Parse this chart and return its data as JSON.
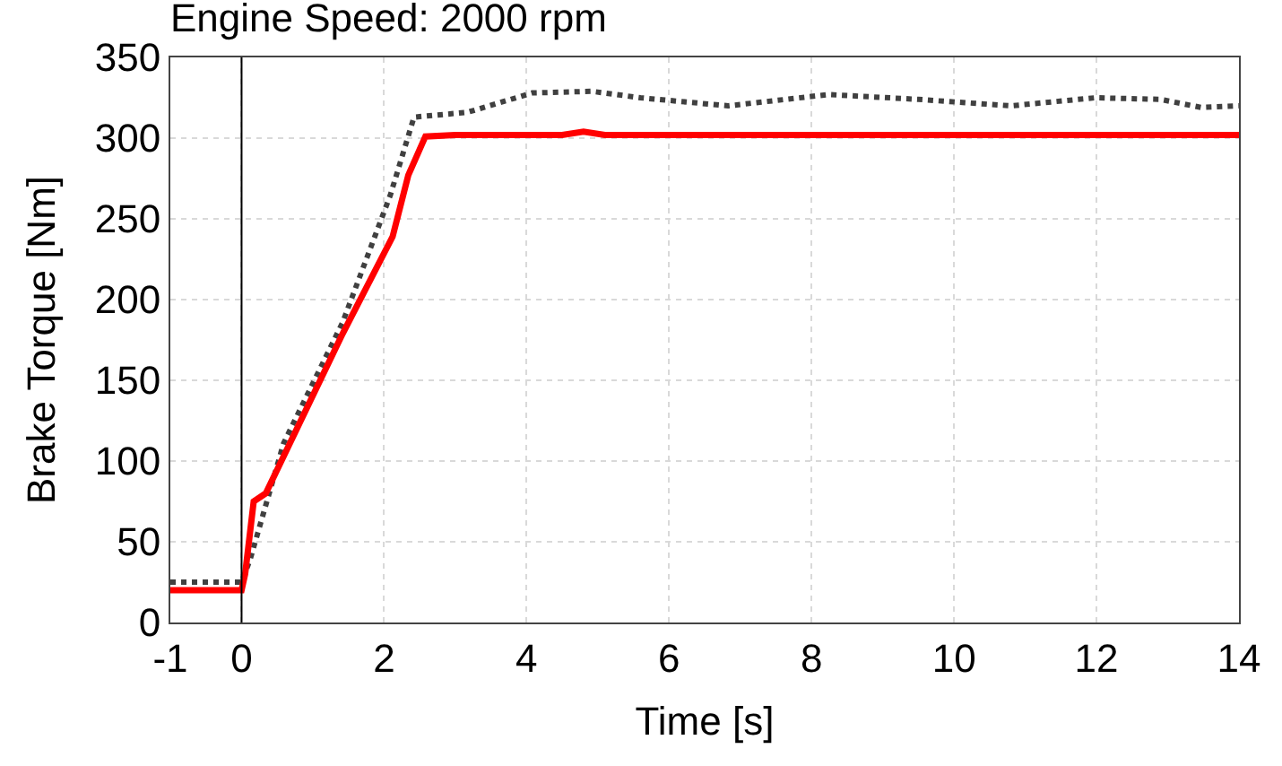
{
  "chart_data": {
    "type": "line",
    "title": "Engine Speed: 2000 rpm",
    "xlabel": "Time [s]",
    "ylabel": "Brake Torque [Nm]",
    "xlim": [
      -1,
      14
    ],
    "xticks": [
      -1,
      0,
      2,
      4,
      6,
      8,
      10,
      12,
      14
    ],
    "ylim": [
      0,
      350
    ],
    "yticks": [
      0,
      50,
      100,
      150,
      200,
      250,
      300,
      350
    ],
    "grid": true,
    "legend": false,
    "series": [
      {
        "color": "#404040",
        "line_style": "dotted",
        "x": [
          -1,
          0,
          0.12,
          0.59,
          1.42,
          2.09,
          2.42,
          3.17,
          4.08,
          4.92,
          5.6,
          6.83,
          8.24,
          9.5,
          10.8,
          11.98,
          12.9,
          13.47,
          14
        ],
        "values": [
          25,
          25,
          39,
          111,
          186,
          265,
          313,
          316,
          328,
          329,
          325,
          320,
          327,
          324,
          320,
          325,
          324,
          319,
          320
        ]
      },
      {
        "color": "#ff0000",
        "line_style": "solid",
        "x": [
          -1,
          0,
          0.05,
          0.17,
          0.34,
          1.42,
          2.12,
          2.34,
          2.58,
          3,
          4.5,
          4.8,
          5.1,
          7,
          10,
          14
        ],
        "values": [
          20,
          20,
          30,
          75,
          80,
          179,
          239,
          277,
          301,
          302,
          302,
          304,
          302,
          302,
          302,
          302
        ]
      }
    ],
    "ref_lines": [
      {
        "axis": "x",
        "value": 0,
        "color": "#000000",
        "line_style": "solid"
      }
    ]
  }
}
